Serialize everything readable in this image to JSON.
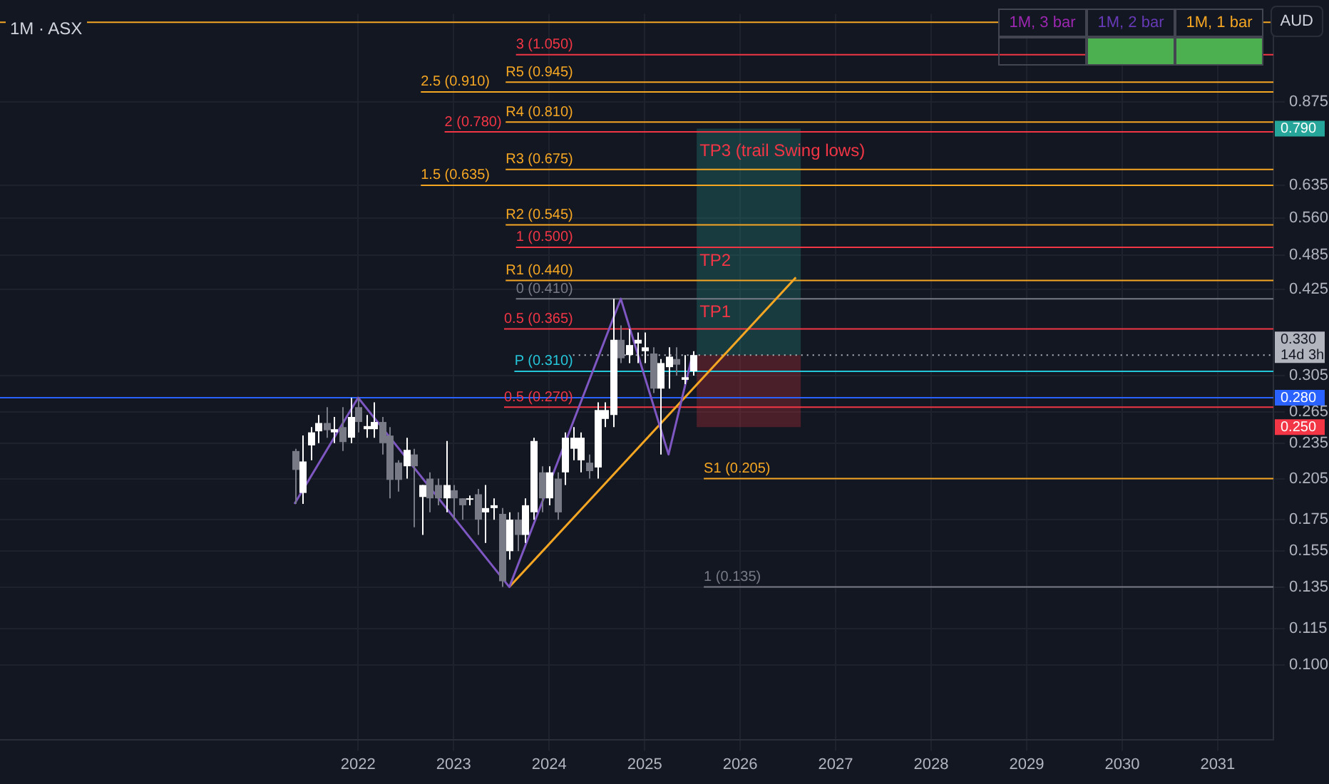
{
  "chart_data": {
    "type": "candlestick",
    "title": "1M · ASX",
    "x": [
      "2021-05",
      "2021-06",
      "2021-07",
      "2021-08",
      "2021-09",
      "2021-10",
      "2021-11",
      "2021-12",
      "2022-01",
      "2022-02",
      "2022-03",
      "2022-04",
      "2022-05",
      "2022-06",
      "2022-07",
      "2022-08",
      "2022-09",
      "2022-10",
      "2022-11",
      "2022-12",
      "2023-01",
      "2023-02",
      "2023-03",
      "2023-04",
      "2023-05",
      "2023-06",
      "2023-07",
      "2023-08",
      "2023-09",
      "2023-10",
      "2023-11",
      "2023-12",
      "2024-01",
      "2024-02",
      "2024-03",
      "2024-04",
      "2024-05",
      "2024-06",
      "2024-07",
      "2024-08",
      "2024-09",
      "2024-10",
      "2024-11",
      "2024-12",
      "2025-01",
      "2025-02",
      "2025-03",
      "2025-04",
      "2025-05",
      "2025-06",
      "2025-07"
    ],
    "ohlc": [
      [
        0.228,
        0.23,
        0.186,
        0.212
      ],
      [
        0.194,
        0.242,
        0.186,
        0.219
      ],
      [
        0.233,
        0.25,
        0.22,
        0.245
      ],
      [
        0.246,
        0.262,
        0.235,
        0.254
      ],
      [
        0.254,
        0.27,
        0.24,
        0.247
      ],
      [
        0.245,
        0.26,
        0.235,
        0.248
      ],
      [
        0.25,
        0.27,
        0.228,
        0.236
      ],
      [
        0.24,
        0.28,
        0.235,
        0.26
      ],
      [
        0.27,
        0.28,
        0.245,
        0.255
      ],
      [
        0.248,
        0.262,
        0.24,
        0.251
      ],
      [
        0.248,
        0.275,
        0.24,
        0.255
      ],
      [
        0.255,
        0.26,
        0.225,
        0.235
      ],
      [
        0.242,
        0.25,
        0.19,
        0.204
      ],
      [
        0.218,
        0.22,
        0.195,
        0.204
      ],
      [
        0.215,
        0.24,
        0.205,
        0.229
      ],
      [
        0.225,
        0.23,
        0.17,
        0.215
      ],
      [
        0.191,
        0.2,
        0.165,
        0.2
      ],
      [
        0.205,
        0.21,
        0.18,
        0.19
      ],
      [
        0.2,
        0.205,
        0.185,
        0.19
      ],
      [
        0.19,
        0.237,
        0.18,
        0.2
      ],
      [
        0.196,
        0.2,
        0.175,
        0.19
      ],
      [
        0.19,
        0.19,
        0.175,
        0.185
      ],
      [
        0.19,
        0.192,
        0.185,
        0.19
      ],
      [
        0.193,
        0.197,
        0.165,
        0.175
      ],
      [
        0.18,
        0.2,
        0.16,
        0.183
      ],
      [
        0.183,
        0.19,
        0.175,
        0.185
      ],
      [
        0.179,
        0.183,
        0.135,
        0.138
      ],
      [
        0.155,
        0.18,
        0.15,
        0.175
      ],
      [
        0.175,
        0.18,
        0.155,
        0.165
      ],
      [
        0.165,
        0.19,
        0.16,
        0.185
      ],
      [
        0.18,
        0.24,
        0.175,
        0.237
      ],
      [
        0.21,
        0.215,
        0.18,
        0.19
      ],
      [
        0.19,
        0.215,
        0.185,
        0.21
      ],
      [
        0.205,
        0.21,
        0.175,
        0.18
      ],
      [
        0.21,
        0.245,
        0.2,
        0.24
      ],
      [
        0.23,
        0.25,
        0.22,
        0.24
      ],
      [
        0.22,
        0.245,
        0.21,
        0.24
      ],
      [
        0.218,
        0.225,
        0.205,
        0.211
      ],
      [
        0.214,
        0.275,
        0.205,
        0.267
      ],
      [
        0.258,
        0.275,
        0.25,
        0.267
      ],
      [
        0.262,
        0.41,
        0.25,
        0.35
      ],
      [
        0.35,
        0.37,
        0.32,
        0.326
      ],
      [
        0.33,
        0.365,
        0.32,
        0.343
      ],
      [
        0.345,
        0.36,
        0.32,
        0.35
      ],
      [
        0.335,
        0.36,
        0.32,
        0.34
      ],
      [
        0.332,
        0.34,
        0.285,
        0.29
      ],
      [
        0.29,
        0.325,
        0.225,
        0.32
      ],
      [
        0.315,
        0.34,
        0.29,
        0.328
      ],
      [
        0.325,
        0.34,
        0.305,
        0.318
      ],
      [
        0.3,
        0.33,
        0.295,
        0.303
      ],
      [
        0.31,
        0.335,
        0.305,
        0.33
      ]
    ],
    "colors": [
      "#787b86",
      "#ffffff",
      "#ffffff",
      "#ffffff",
      "#787b86",
      "#ffffff",
      "#787b86",
      "#ffffff",
      "#787b86",
      "#ffffff",
      "#ffffff",
      "#787b86",
      "#787b86",
      "#787b86",
      "#ffffff",
      "#787b86",
      "#ffffff",
      "#787b86",
      "#787b86",
      "#ffffff",
      "#787b86",
      "#787b86",
      "#ffffff",
      "#787b86",
      "#ffffff",
      "#ffffff",
      "#787b86",
      "#ffffff",
      "#787b86",
      "#ffffff",
      "#ffffff",
      "#787b86",
      "#ffffff",
      "#787b86",
      "#ffffff",
      "#ffffff",
      "#ffffff",
      "#787b86",
      "#ffffff",
      "#ffffff",
      "#ffffff",
      "#787b86",
      "#ffffff",
      "#ffffff",
      "#ffffff",
      "#787b86",
      "#ffffff",
      "#ffffff",
      "#787b86",
      "#ffffff",
      "#ffffff"
    ],
    "series": [
      {
        "type": "line",
        "x": [
          "2021-05",
          "2022-01",
          "2023-08",
          "2024-10",
          "2025-04",
          "2025-07"
        ],
        "values": [
          0.186,
          0.28,
          0.135,
          0.41,
          0.225,
          0.33
        ],
        "color": "#7e57c2"
      },
      {
        "type": "line",
        "x": [
          "2023-08",
          "2026-08"
        ],
        "values": [
          0.135,
          0.445
        ],
        "color": "#f5a623"
      }
    ],
    "xlim": [
      "2018-04",
      "2031-08"
    ],
    "xticks": [
      "2022",
      "2023",
      "2024",
      "2025",
      "2026",
      "2027",
      "2028",
      "2029",
      "2030",
      "2031"
    ],
    "ylim": [
      0.075,
      1.23
    ],
    "log": true,
    "yticks": [
      {
        "value": 0.1,
        "label": "0.100"
      },
      {
        "value": 0.115,
        "label": "0.115"
      },
      {
        "value": 0.135,
        "label": "0.135"
      },
      {
        "value": 0.155,
        "label": "0.155"
      },
      {
        "value": 0.175,
        "label": "0.175"
      },
      {
        "value": 0.205,
        "label": "0.205"
      },
      {
        "value": 0.235,
        "label": "0.235"
      },
      {
        "value": 0.265,
        "label": "0.265"
      },
      {
        "value": 0.305,
        "label": "0.305"
      },
      {
        "value": 0.425,
        "label": "0.425"
      },
      {
        "value": 0.485,
        "label": "0.485"
      },
      {
        "value": 0.56,
        "label": "0.560"
      },
      {
        "value": 0.635,
        "label": "0.635"
      },
      {
        "value": 0.875,
        "label": "0.875"
      }
    ],
    "bands": [
      {
        "axis": "y",
        "from": 0.33,
        "to": 0.79,
        "color": "#26a69a"
      },
      {
        "axis": "y",
        "from": 0.25,
        "to": 0.33,
        "color": "#f23645"
      }
    ],
    "ref_lines": [
      {
        "axis": "y",
        "value": 1.19,
        "color": "#f5a623"
      },
      {
        "axis": "y",
        "value": 1.05,
        "label": "3 (1.050)",
        "color": "#f23645"
      },
      {
        "axis": "y",
        "value": 0.945,
        "label": "R5 (0.945)",
        "color": "#f5a623"
      },
      {
        "axis": "y",
        "value": 0.91,
        "label": "2.5 (0.910)",
        "color": "#f5a623"
      },
      {
        "axis": "y",
        "value": 0.81,
        "label": "R4 (0.810)",
        "color": "#f5a623"
      },
      {
        "axis": "y",
        "value": 0.78,
        "label": "2 (0.780)",
        "color": "#f23645"
      },
      {
        "axis": "y",
        "value": 0.675,
        "label": "R3 (0.675)",
        "color": "#f5a623"
      },
      {
        "axis": "y",
        "value": 0.635,
        "label": "1.5 (0.635)",
        "color": "#f5a623"
      },
      {
        "axis": "y",
        "value": 0.545,
        "label": "R2 (0.545)",
        "color": "#f5a623"
      },
      {
        "axis": "y",
        "value": 0.5,
        "label": "1 (0.500)",
        "color": "#f23645"
      },
      {
        "axis": "y",
        "value": 0.44,
        "label": "R1 (0.440)",
        "color": "#f5a623"
      },
      {
        "axis": "y",
        "value": 0.41,
        "label": "0 (0.410)",
        "color": "#787b86"
      },
      {
        "axis": "y",
        "value": 0.365,
        "label": "0.5 (0.365)",
        "color": "#f23645"
      },
      {
        "axis": "y",
        "value": 0.33,
        "label": "0.330",
        "color": "#b2b5be",
        "line_style": "dotted"
      },
      {
        "axis": "y",
        "value": 0.31,
        "label": "P (0.310)",
        "color": "#26c6da"
      },
      {
        "axis": "y",
        "value": 0.28,
        "color": "#2962ff"
      },
      {
        "axis": "y",
        "value": 0.27,
        "label": "0.5 (0.270)",
        "color": "#f23645"
      },
      {
        "axis": "y",
        "value": 0.205,
        "label": "S1 (0.205)",
        "color": "#f5a623"
      },
      {
        "axis": "y",
        "value": 0.135,
        "label": "1 (0.135)",
        "color": "#787b86"
      }
    ],
    "annotations": [
      {
        "text": "0.790",
        "y": 0.79
      },
      {
        "text": "0.280",
        "y": 0.28
      },
      {
        "text": "0.250",
        "y": 0.25
      },
      "1M, 3 bar",
      "1M, 2 bar",
      "1M, 1 bar",
      "AUD",
      "14d 3h",
      "TP3 (trail Swing lows)",
      "TP2",
      "TP1"
    ],
    "grid": true,
    "legend": false,
    "marker": "none"
  }
}
